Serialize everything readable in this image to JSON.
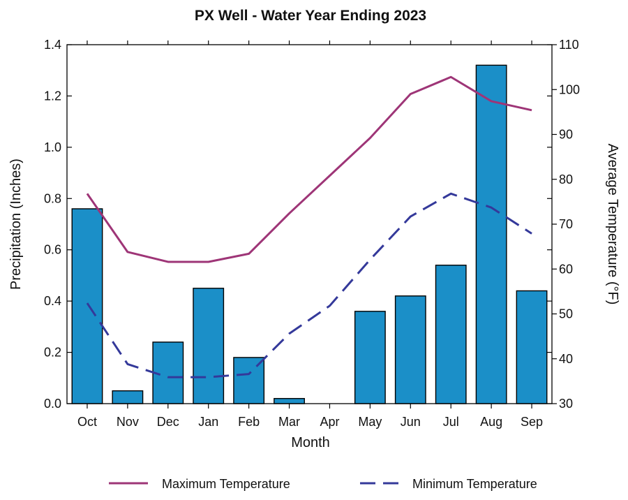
{
  "chart_data": {
    "type": "bar",
    "title": "PX Well - Water Year Ending 2023",
    "xlabel": "Month",
    "ylabel": "Precipitation (Inches)",
    "y2label": "Average Temperature (°F)",
    "categories": [
      "Oct",
      "Nov",
      "Dec",
      "Jan",
      "Feb",
      "Mar",
      "Apr",
      "May",
      "Jun",
      "Jul",
      "Aug",
      "Sep"
    ],
    "ylim": [
      0,
      1.4
    ],
    "yticks": [
      "0.0",
      "0.2",
      "0.4",
      "0.6",
      "0.8",
      "1.0",
      "1.2",
      "1.4"
    ],
    "y2lim": [
      30,
      110
    ],
    "y2ticks": [
      "30",
      "40",
      "50",
      "60",
      "70",
      "80",
      "90",
      "100",
      "110"
    ],
    "bars": {
      "name": "Precipitation",
      "color": "#1b8fc8",
      "values": [
        0.76,
        0.05,
        0.24,
        0.45,
        0.18,
        0.02,
        0.0,
        0.36,
        0.42,
        0.54,
        1.32,
        0.44
      ]
    },
    "series": [
      {
        "name": "Maximum Temperature",
        "axis": "right",
        "style": "solid",
        "color": "#9e3577",
        "values": [
          76.8,
          63.8,
          61.6,
          61.6,
          63.4,
          72.4,
          80.8,
          89.2,
          99.0,
          102.8,
          97.4,
          95.4
        ]
      },
      {
        "name": "Minimum Temperature",
        "axis": "right",
        "style": "dashed",
        "color": "#34399a",
        "values": [
          52.4,
          38.8,
          35.9,
          35.9,
          36.6,
          45.6,
          51.8,
          62.1,
          71.7,
          76.8,
          73.7,
          67.9
        ]
      }
    ],
    "legend_position": "bottom",
    "grid": false
  }
}
